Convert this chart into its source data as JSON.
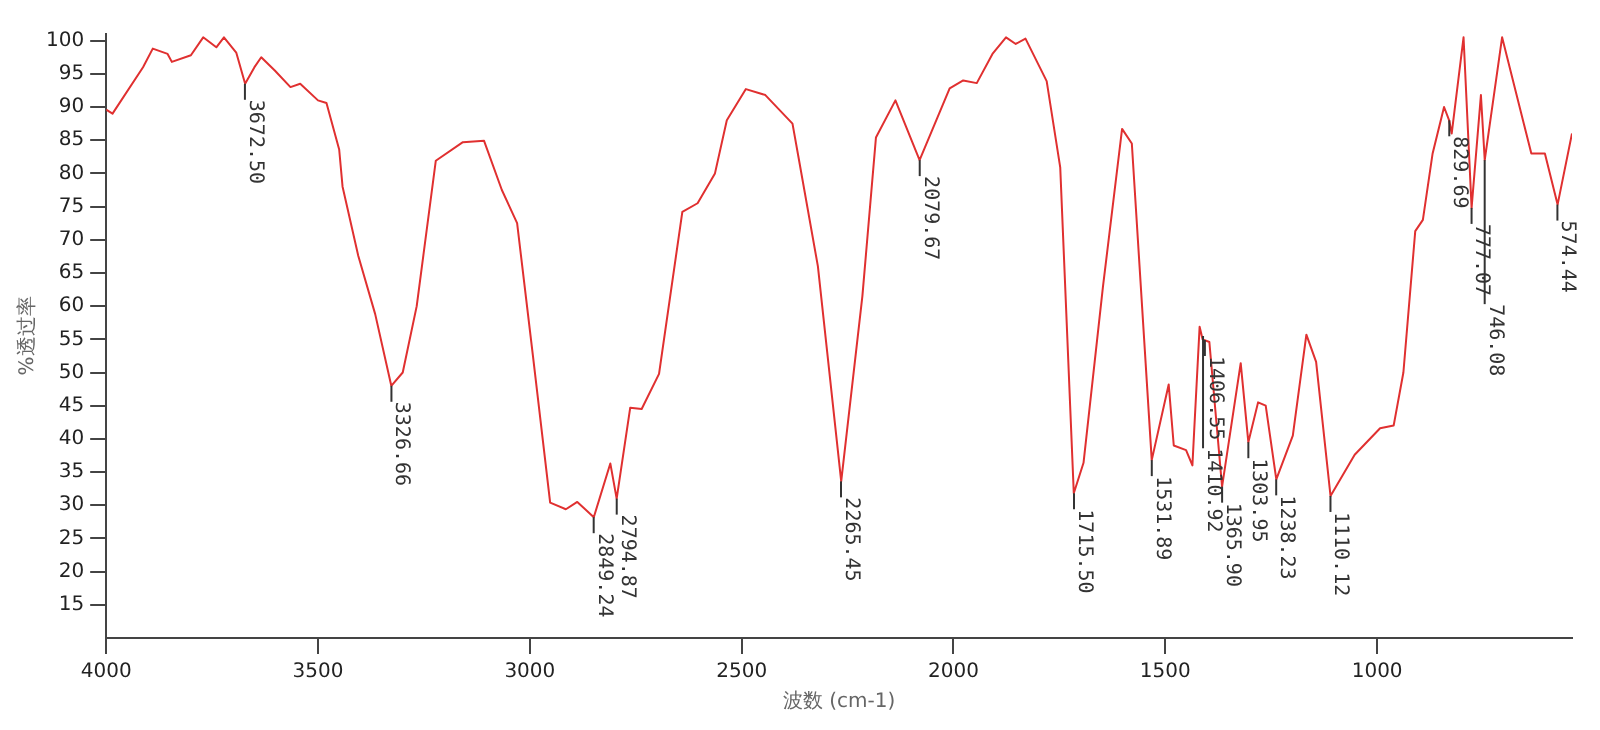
{
  "chart_data": {
    "type": "line",
    "xlabel": "波数 (cm-1)",
    "ylabel": "%透过率",
    "x": [
      4000,
      3985,
      3913,
      3890,
      3855,
      3845,
      3800,
      3771,
      3740,
      3722,
      3693,
      3672,
      3650,
      3634,
      3602,
      3565,
      3542,
      3500,
      3480,
      3450,
      3442,
      3405,
      3365,
      3327,
      3300,
      3267,
      3222,
      3158,
      3108,
      3066,
      3030,
      2993,
      2952,
      2915,
      2888,
      2849,
      2810,
      2795,
      2763,
      2736,
      2695,
      2640,
      2604,
      2563,
      2535,
      2490,
      2444,
      2380,
      2366,
      2320,
      2265,
      2215,
      2183,
      2137,
      2080,
      2009,
      1977,
      1945,
      1908,
      1876,
      1853,
      1830,
      1780,
      1748,
      1716,
      1693,
      1647,
      1602,
      1579,
      1532,
      1492,
      1480,
      1451,
      1436,
      1432,
      1419,
      1412,
      1396,
      1366,
      1322,
      1304,
      1281,
      1263,
      1238,
      1199,
      1167,
      1144,
      1110,
      1053,
      993,
      961,
      938,
      910,
      892,
      869,
      842,
      830,
      824,
      796,
      777,
      755,
      746,
      705,
      636,
      604,
      574,
      540
    ],
    "series": [
      {
        "color": "#e03030",
        "values": [
          89.6,
          89,
          96,
          98.8,
          98,
          96.8,
          97.8,
          100.5,
          99,
          100.5,
          98.2,
          93.5,
          96,
          97.5,
          95.5,
          93,
          93.5,
          91,
          90.6,
          83.6,
          78,
          67.6,
          58.8,
          48,
          50,
          60,
          81.9,
          84.7,
          84.9,
          77.5,
          72.5,
          52.7,
          30.4,
          29.4,
          30.5,
          28.2,
          36.3,
          31,
          44.7,
          44.5,
          49.8,
          74.2,
          75.5,
          80,
          88,
          92.7,
          91.8,
          87.5,
          82.5,
          66,
          33.6,
          61.5,
          85.4,
          91,
          82,
          92.8,
          94,
          93.6,
          98,
          100.5,
          99.5,
          100.3,
          93.9,
          80.9,
          31.8,
          36.4,
          63,
          86.7,
          84.5,
          36.8,
          48.2,
          39,
          38.3,
          36,
          41,
          56.9,
          55,
          54.6,
          32.8,
          51.4,
          39.5,
          45.5,
          45,
          33.9,
          40.5,
          55.7,
          51.6,
          31.4,
          37.6,
          41.6,
          42,
          50,
          71.3,
          73,
          83,
          90,
          88,
          86,
          100.5,
          74.8,
          91.8,
          82,
          100.5,
          83,
          83,
          75.3,
          86
        ]
      }
    ],
    "xlim": [
      4000,
      540
    ],
    "xticks": [
      4000,
      3500,
      3000,
      2500,
      2000,
      1500,
      1000
    ],
    "ylim": [
      10,
      101
    ],
    "yticks": [
      15,
      20,
      25,
      30,
      35,
      40,
      45,
      50,
      55,
      60,
      65,
      70,
      75,
      80,
      85,
      90,
      95,
      100
    ],
    "annotations": [
      {
        "text": "3672.50",
        "x": 3672.5,
        "y": 93.5
      },
      {
        "text": "3326.66",
        "x": 3326.66,
        "y": 48
      },
      {
        "text": "2849.24",
        "x": 2849.24,
        "y": 28.2
      },
      {
        "text": "2794.87",
        "x": 2794.87,
        "y": 31
      },
      {
        "text": "2265.45",
        "x": 2265.45,
        "y": 33.6
      },
      {
        "text": "2079.67",
        "x": 2079.67,
        "y": 82
      },
      {
        "text": "1715.50",
        "x": 1715.5,
        "y": 31.8
      },
      {
        "text": "1531.89",
        "x": 1531.89,
        "y": 36.8
      },
      {
        "text": "1406.55",
        "x": 1406.55,
        "y": 54.9
      },
      {
        "text": "1410.92",
        "x": 1410.92,
        "y": 55.5
      },
      {
        "text": "1365.90",
        "x": 1365.9,
        "y": 32.8
      },
      {
        "text": "1303.95",
        "x": 1303.95,
        "y": 39.5
      },
      {
        "text": "1238.23",
        "x": 1238.23,
        "y": 33.9
      },
      {
        "text": "1110.12",
        "x": 1110.12,
        "y": 31.4
      },
      {
        "text": "829.69",
        "x": 829.69,
        "y": 88
      },
      {
        "text": "777.07",
        "x": 777.07,
        "y": 74.8
      },
      {
        "text": "746.08",
        "x": 746.08,
        "y": 82
      },
      {
        "text": "574.44",
        "x": 574.44,
        "y": 75.3
      }
    ]
  }
}
